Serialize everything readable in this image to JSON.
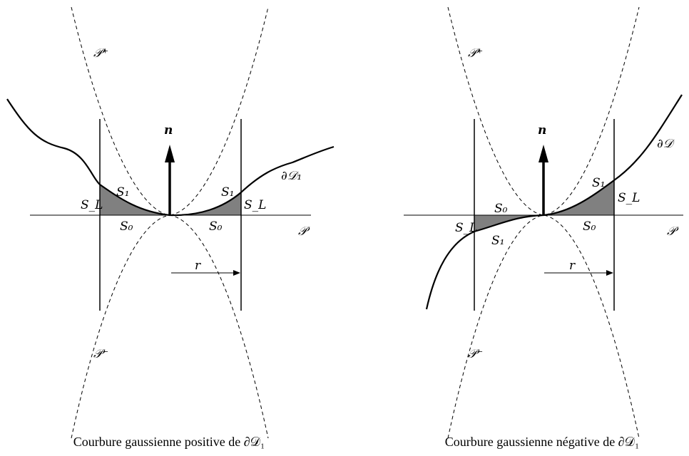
{
  "left_panel": {
    "caption": "Courbure gaussienne positive de ∂𝒟₁",
    "labels": {
      "p_plus": "𝒫⁺",
      "p_minus": "𝒫⁻",
      "plane": "𝒫",
      "normal": "n",
      "boundary": "∂𝒟₁",
      "s1_left": "S₁",
      "s1_right": "S₁",
      "s0_left": "S₀",
      "s0_right": "S₀",
      "sl_left": "S_L",
      "sl_right": "S_L",
      "radius": "r"
    }
  },
  "right_panel": {
    "caption": "Courbure gaussienne négative de ∂𝒟₁",
    "labels": {
      "p_plus": "𝒫⁺",
      "p_minus": "𝒫⁻",
      "plane": "𝒫",
      "normal": "n",
      "boundary": "∂𝒟",
      "s1_left": "S₁",
      "s1_right": "S₁",
      "s0_left": "S₀",
      "s0_right": "S₀",
      "sl_left": "S_L",
      "sl_right": "S_L",
      "radius": "r"
    }
  },
  "colors": {
    "stroke": "#000000",
    "shade": "#808080",
    "background": "#ffffff"
  }
}
